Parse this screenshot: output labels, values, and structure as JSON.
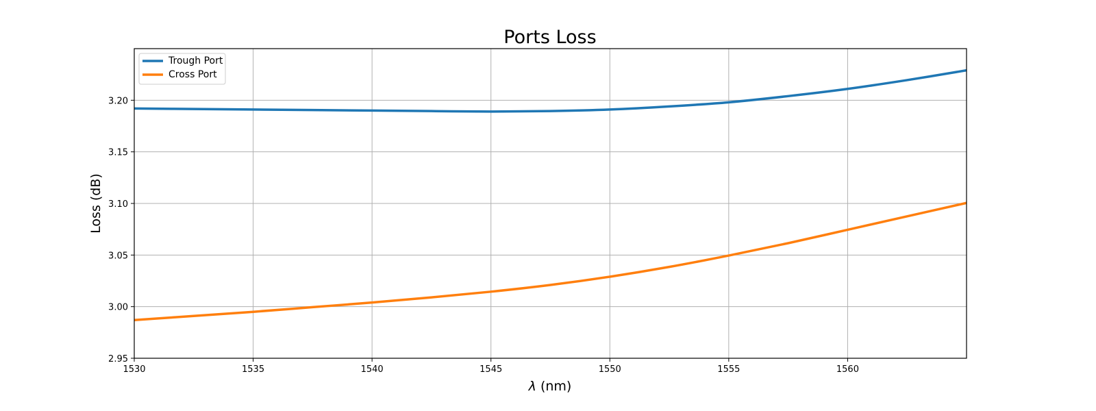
{
  "chart_data": {
    "type": "line",
    "title": "Ports Loss",
    "xlabel_symbol": "λ",
    "xlabel_unit": " (nm)",
    "ylabel": "Loss (dB)",
    "xlim": [
      1530,
      1565
    ],
    "ylim": [
      2.95,
      3.25
    ],
    "xticks": [
      1530,
      1535,
      1540,
      1545,
      1550,
      1555,
      1560
    ],
    "xtick_labels": [
      "1530",
      "1535",
      "1540",
      "1545",
      "1550",
      "1555",
      "1560"
    ],
    "yticks": [
      2.95,
      3.0,
      3.05,
      3.1,
      3.15,
      3.2
    ],
    "ytick_labels": [
      "2.95",
      "3.00",
      "3.05",
      "3.10",
      "3.15",
      "3.20"
    ],
    "grid": true,
    "legend_position": "top-left",
    "x": [
      1530,
      1532.5,
      1535,
      1537.5,
      1540,
      1542.5,
      1545,
      1547.5,
      1550,
      1552.5,
      1555,
      1557.5,
      1560,
      1562.5,
      1565
    ],
    "series": [
      {
        "name": "Trough Port",
        "color": "#1f77b4",
        "values": [
          3.192,
          3.1915,
          3.191,
          3.1905,
          3.19,
          3.1895,
          3.189,
          3.1895,
          3.191,
          3.194,
          3.198,
          3.204,
          3.211,
          3.2195,
          3.229
        ]
      },
      {
        "name": "Cross Port",
        "color": "#ff7f0e",
        "values": [
          2.987,
          2.991,
          2.995,
          2.9995,
          3.004,
          3.009,
          3.0145,
          3.021,
          3.029,
          3.0385,
          3.0495,
          3.0615,
          3.0745,
          3.0875,
          3.1005
        ]
      }
    ]
  }
}
